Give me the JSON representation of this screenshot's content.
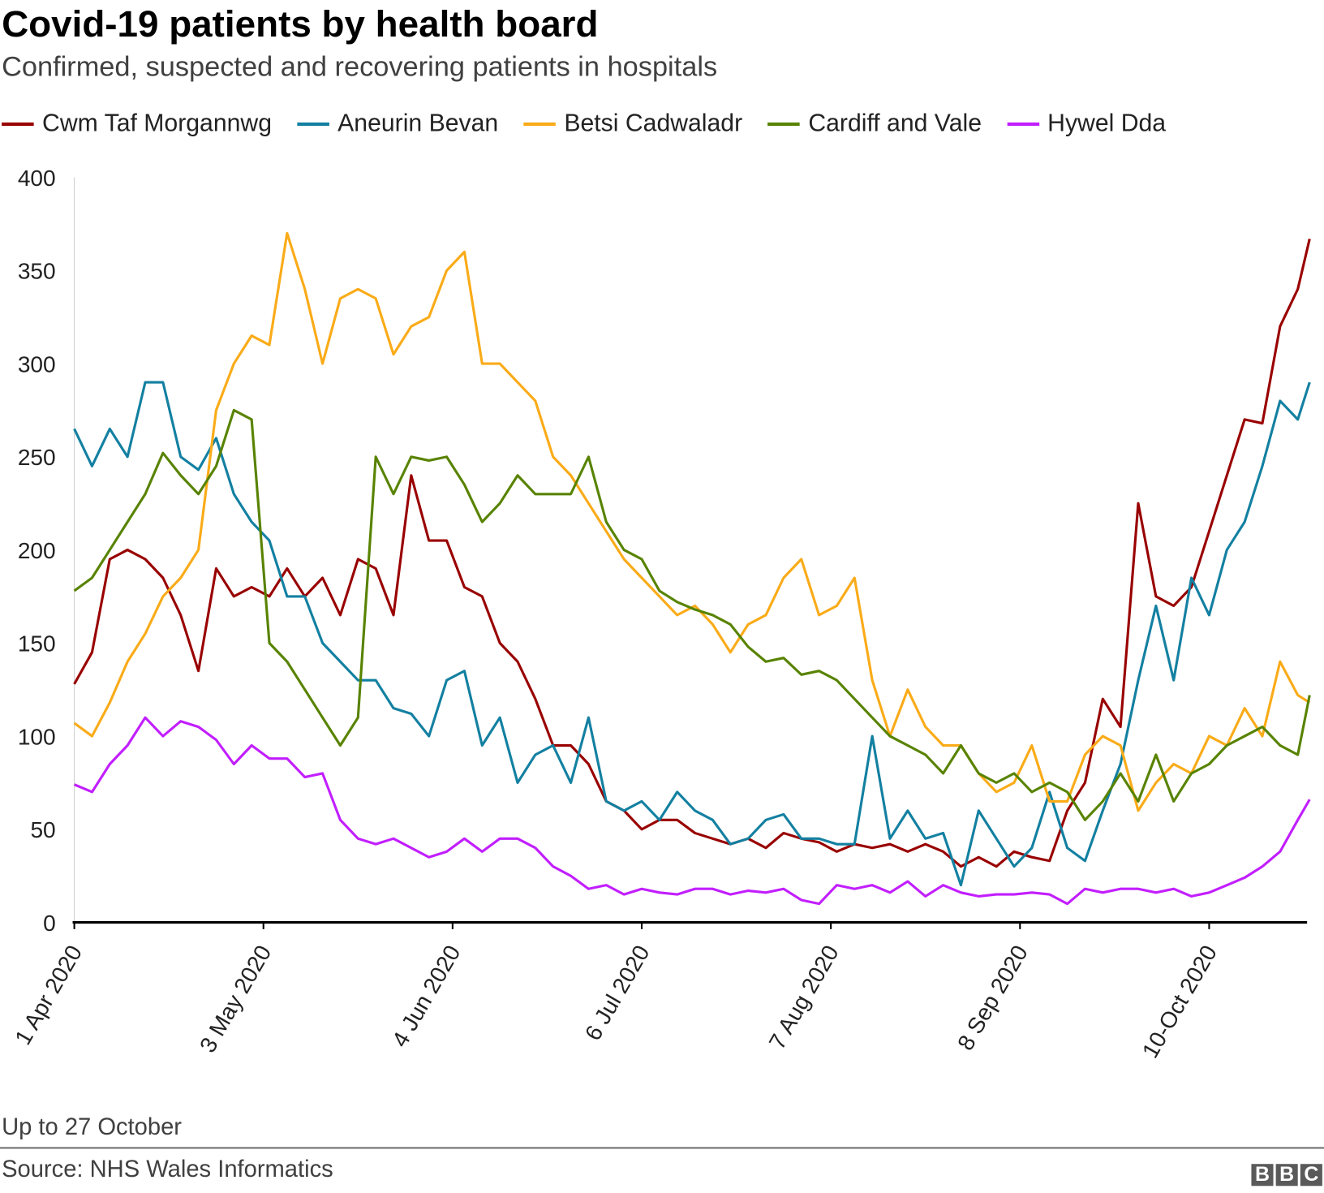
{
  "chart_data": {
    "type": "line",
    "title": "Covid-19 patients by health board",
    "subtitle": "Confirmed, suspected and recovering patients in hospitals",
    "xlabel": "",
    "ylabel": "",
    "ylim": [
      0,
      400
    ],
    "yticks": [
      "0",
      "50",
      "100",
      "150",
      "200",
      "250",
      "300",
      "350",
      "400"
    ],
    "xlim": [
      "2020-04-01",
      "2020-10-27"
    ],
    "xticks": [
      {
        "date": "2020-04-01",
        "label": "1 Apr 2020"
      },
      {
        "date": "2020-05-03",
        "label": "3 May 2020"
      },
      {
        "date": "2020-06-04",
        "label": "4 Jun 2020"
      },
      {
        "date": "2020-07-06",
        "label": "6 Jul 2020"
      },
      {
        "date": "2020-08-07",
        "label": "7 Aug 2020"
      },
      {
        "date": "2020-09-08",
        "label": "8 Sep 2020"
      },
      {
        "date": "2020-10-10",
        "label": "10-Oct 2020"
      }
    ],
    "grid": false,
    "legend_position": "top",
    "x": [
      "2020-04-01",
      "2020-04-04",
      "2020-04-07",
      "2020-04-10",
      "2020-04-13",
      "2020-04-16",
      "2020-04-19",
      "2020-04-22",
      "2020-04-25",
      "2020-04-28",
      "2020-05-01",
      "2020-05-04",
      "2020-05-07",
      "2020-05-10",
      "2020-05-13",
      "2020-05-16",
      "2020-05-19",
      "2020-05-22",
      "2020-05-25",
      "2020-05-28",
      "2020-05-31",
      "2020-06-03",
      "2020-06-06",
      "2020-06-09",
      "2020-06-12",
      "2020-06-15",
      "2020-06-18",
      "2020-06-21",
      "2020-06-24",
      "2020-06-27",
      "2020-06-30",
      "2020-07-03",
      "2020-07-06",
      "2020-07-09",
      "2020-07-12",
      "2020-07-15",
      "2020-07-18",
      "2020-07-21",
      "2020-07-24",
      "2020-07-27",
      "2020-07-30",
      "2020-08-02",
      "2020-08-05",
      "2020-08-08",
      "2020-08-11",
      "2020-08-14",
      "2020-08-17",
      "2020-08-20",
      "2020-08-23",
      "2020-08-26",
      "2020-08-29",
      "2020-09-01",
      "2020-09-04",
      "2020-09-07",
      "2020-09-10",
      "2020-09-13",
      "2020-09-16",
      "2020-09-19",
      "2020-09-22",
      "2020-09-25",
      "2020-09-28",
      "2020-10-01",
      "2020-10-04",
      "2020-10-07",
      "2020-10-10",
      "2020-10-13",
      "2020-10-16",
      "2020-10-19",
      "2020-10-22",
      "2020-10-25",
      "2020-10-27"
    ],
    "series": [
      {
        "name": "Cwm Taf Morgannwg",
        "color": "#990000",
        "values": [
          128,
          145,
          195,
          200,
          195,
          185,
          165,
          135,
          190,
          175,
          180,
          175,
          190,
          175,
          185,
          165,
          195,
          190,
          165,
          240,
          205,
          205,
          180,
          175,
          150,
          140,
          120,
          95,
          95,
          85,
          65,
          60,
          50,
          55,
          55,
          48,
          45,
          42,
          45,
          40,
          48,
          45,
          43,
          38,
          42,
          40,
          42,
          38,
          42,
          38,
          30,
          35,
          30,
          38,
          35,
          33,
          60,
          75,
          120,
          105,
          225,
          175,
          170,
          180,
          210,
          240,
          270,
          268,
          320,
          340,
          367
        ]
      },
      {
        "name": "Aneurin Bevan",
        "color": "#1380A1",
        "values": [
          265,
          245,
          265,
          250,
          290,
          290,
          250,
          243,
          260,
          230,
          215,
          205,
          175,
          175,
          150,
          140,
          130,
          130,
          115,
          112,
          100,
          130,
          135,
          95,
          110,
          75,
          90,
          95,
          75,
          110,
          65,
          60,
          65,
          55,
          70,
          60,
          55,
          42,
          45,
          55,
          58,
          45,
          45,
          42,
          42,
          100,
          45,
          60,
          45,
          48,
          20,
          60,
          45,
          30,
          40,
          70,
          40,
          33,
          60,
          85,
          130,
          170,
          130,
          185,
          165,
          200,
          215,
          245,
          280,
          270,
          290
        ]
      },
      {
        "name": "Betsi Cadwaladr",
        "color": "#FAAB18",
        "values": [
          107,
          100,
          118,
          140,
          155,
          175,
          185,
          200,
          275,
          300,
          315,
          310,
          370,
          340,
          300,
          335,
          340,
          335,
          305,
          320,
          325,
          350,
          360,
          300,
          300,
          290,
          280,
          250,
          240,
          225,
          210,
          195,
          185,
          175,
          165,
          170,
          160,
          145,
          160,
          165,
          185,
          195,
          165,
          170,
          185,
          130,
          100,
          125,
          105,
          95,
          95,
          80,
          70,
          75,
          95,
          65,
          65,
          90,
          100,
          95,
          60,
          75,
          85,
          80,
          100,
          95,
          115,
          100,
          140,
          122,
          118
        ]
      },
      {
        "name": "Cardiff and Vale",
        "color": "#588300",
        "values": [
          178,
          185,
          200,
          215,
          230,
          252,
          240,
          230,
          245,
          275,
          270,
          150,
          140,
          125,
          110,
          95,
          110,
          250,
          230,
          250,
          248,
          250,
          235,
          215,
          225,
          240,
          230,
          230,
          230,
          250,
          215,
          200,
          195,
          178,
          172,
          168,
          165,
          160,
          148,
          140,
          142,
          133,
          135,
          130,
          120,
          110,
          100,
          95,
          90,
          80,
          95,
          80,
          75,
          80,
          70,
          75,
          70,
          55,
          65,
          80,
          65,
          90,
          65,
          80,
          85,
          95,
          100,
          105,
          95,
          90,
          122
        ]
      },
      {
        "name": "Hywel Dda",
        "color": "#C21EFF",
        "values": [
          74,
          70,
          85,
          95,
          110,
          100,
          108,
          105,
          98,
          85,
          95,
          88,
          88,
          78,
          80,
          55,
          45,
          42,
          45,
          40,
          35,
          38,
          45,
          38,
          45,
          45,
          40,
          30,
          25,
          18,
          20,
          15,
          18,
          16,
          15,
          18,
          18,
          15,
          17,
          16,
          18,
          12,
          10,
          20,
          18,
          20,
          16,
          22,
          14,
          20,
          16,
          14,
          15,
          15,
          16,
          15,
          10,
          18,
          16,
          18,
          18,
          16,
          18,
          14,
          16,
          20,
          24,
          30,
          38,
          55,
          66
        ]
      }
    ]
  },
  "footer": {
    "note": "Up to 27 October",
    "source": "Source: NHS Wales Informatics",
    "logo_text": "BBC"
  }
}
